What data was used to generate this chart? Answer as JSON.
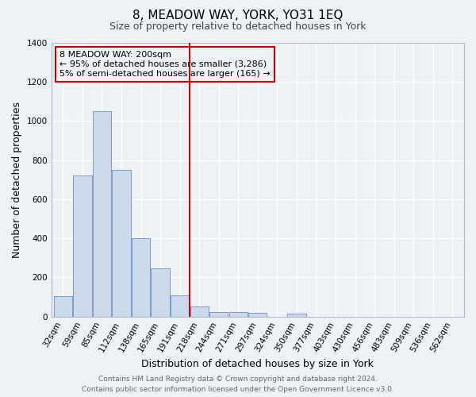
{
  "title": "8, MEADOW WAY, YORK, YO31 1EQ",
  "subtitle": "Size of property relative to detached houses in York",
  "xlabel": "Distribution of detached houses by size in York",
  "ylabel": "Number of detached properties",
  "bar_color": "#ccdaec",
  "bar_edge_color": "#7799cc",
  "categories": [
    "32sqm",
    "59sqm",
    "85sqm",
    "112sqm",
    "138sqm",
    "165sqm",
    "191sqm",
    "218sqm",
    "244sqm",
    "271sqm",
    "297sqm",
    "324sqm",
    "350sqm",
    "377sqm",
    "403sqm",
    "430sqm",
    "456sqm",
    "483sqm",
    "509sqm",
    "536sqm",
    "562sqm"
  ],
  "values": [
    105,
    720,
    1050,
    750,
    400,
    245,
    110,
    50,
    25,
    25,
    20,
    0,
    15,
    0,
    0,
    0,
    0,
    0,
    0,
    0,
    0
  ],
  "ylim": [
    0,
    1400
  ],
  "yticks": [
    0,
    200,
    400,
    600,
    800,
    1000,
    1200,
    1400
  ],
  "vline_color": "#cc0000",
  "annotation_title": "8 MEADOW WAY: 200sqm",
  "annotation_line1": "← 95% of detached houses are smaller (3,286)",
  "annotation_line2": "5% of semi-detached houses are larger (165) →",
  "annotation_box_color": "#cc0000",
  "footer_line1": "Contains HM Land Registry data © Crown copyright and database right 2024.",
  "footer_line2": "Contains public sector information licensed under the Open Government Licence v3.0.",
  "background_color": "#eef2f7",
  "grid_color": "#ffffff",
  "title_fontsize": 11,
  "subtitle_fontsize": 9,
  "axis_label_fontsize": 9,
  "tick_fontsize": 7.5,
  "footer_fontsize": 6.5,
  "annotation_fontsize": 8
}
